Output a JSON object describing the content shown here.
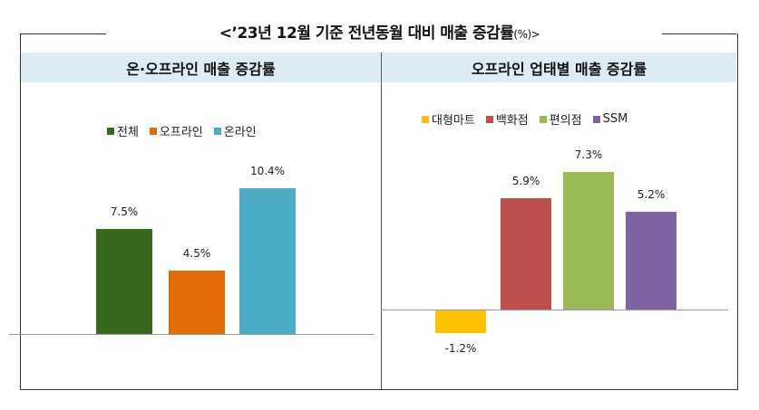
{
  "title": "<’23년 12월 기준 전년동월 대비 매출 증감률",
  "title_unit": "(%)>",
  "chart_data": [
    {
      "type": "bar",
      "title": "온·오프라인 매출 증감률",
      "categories": [
        "전체",
        "오프라인",
        "온라인"
      ],
      "values": [
        7.5,
        4.5,
        10.4
      ],
      "labels": [
        "7.5%",
        "4.5%",
        "10.4%"
      ],
      "colors": [
        "#376a1f",
        "#e26b0a",
        "#4bacc6"
      ],
      "legend": "top",
      "ylim": [
        0,
        11
      ],
      "grid": false
    },
    {
      "type": "bar",
      "title": "오프라인 업태별 매출 증감률",
      "categories": [
        "대형마트",
        "백화점",
        "편의점",
        "SSM"
      ],
      "values": [
        -1.2,
        5.9,
        7.3,
        5.2
      ],
      "labels": [
        "-1.2%",
        "5.9%",
        "7.3%",
        "5.2%"
      ],
      "colors": [
        "#ffc000",
        "#c0504d",
        "#9bbb59",
        "#8064a2"
      ],
      "legend": "top",
      "ylim": [
        -2,
        8
      ],
      "grid": false
    }
  ]
}
